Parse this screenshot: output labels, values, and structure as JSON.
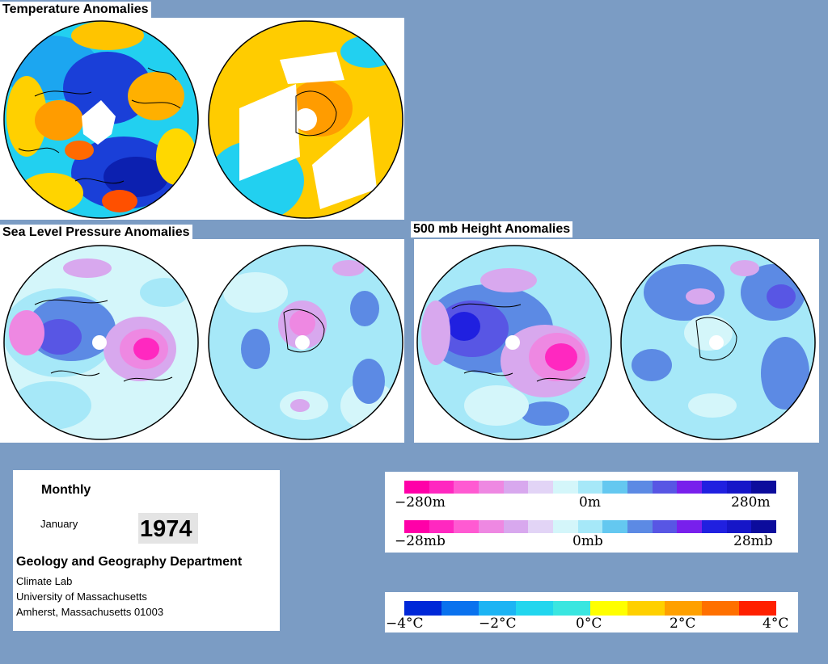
{
  "titles": {
    "temperature": "Temperature Anomalies",
    "slp": "Sea Level Pressure Anomalies",
    "height": "500 mb Height Anomalies"
  },
  "info": {
    "period": "Monthly",
    "month": "January",
    "year": "1974",
    "department": "Geology and Geography Department",
    "lab": "Climate Lab",
    "university": "University of Massachusetts",
    "address": "Amherst, Massachusetts 01003"
  },
  "legends": {
    "height": {
      "min": "−280m",
      "mid": "0m",
      "max": "280m"
    },
    "pressure": {
      "min": "−28mb",
      "mid": "0mb",
      "max": "28mb"
    },
    "temperature": {
      "t1": "−4°C",
      "t2": "−2°C",
      "t3": "0°C",
      "t4": "2°C",
      "t5": "4°C"
    }
  },
  "colors": {
    "background": "#7b9cc4",
    "anomaly_scale": [
      "#ff00a8",
      "#ff28c0",
      "#ff5ad2",
      "#ee88e2",
      "#d8a8ee",
      "#e2d4f6",
      "#d4f6fa",
      "#a6e8f8",
      "#64c8f0",
      "#5c8ae4",
      "#5856e4",
      "#7820ec",
      "#2020e0",
      "#1616c8",
      "#0c0c9c"
    ],
    "temperature_scale": [
      "#0028d8",
      "#0a72ee",
      "#1cb4f4",
      "#22d6ee",
      "#3ae6e0",
      "#ffff00",
      "#ffd000",
      "#ffa000",
      "#ff7000",
      "#ff2000"
    ]
  }
}
